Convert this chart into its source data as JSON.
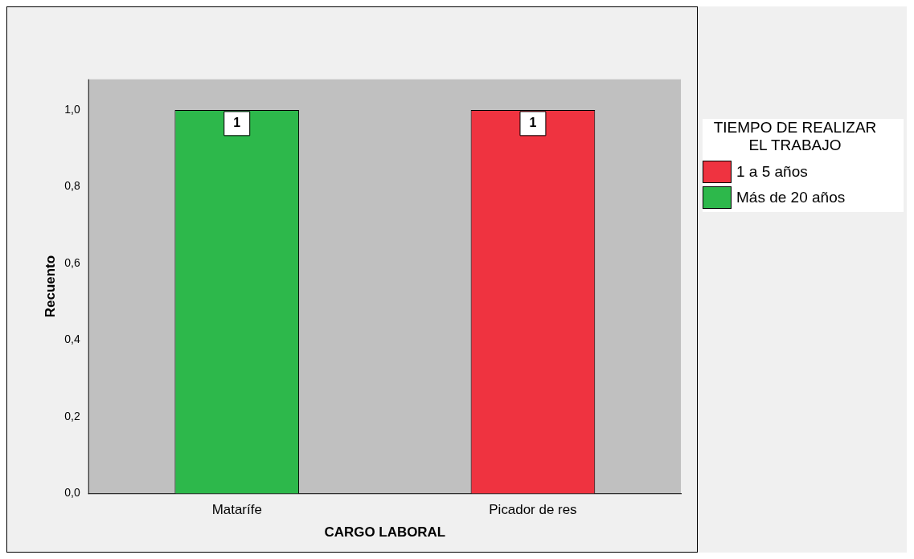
{
  "chart_data": {
    "type": "bar",
    "xlabel": "CARGO LABORAL",
    "ylabel": "Recuento",
    "legend_title": "TIEMPO DE REALIZAR EL TRABAJO",
    "categories": [
      "Matarífe",
      "Picador de res"
    ],
    "series": [
      {
        "name": "1 a 5 años",
        "color": "#ef3340",
        "values": [
          null,
          1
        ]
      },
      {
        "name": "Más de 20 años",
        "color": "#2db84b",
        "values": [
          1,
          null
        ]
      }
    ],
    "stacked": true,
    "ylim": [
      0,
      1.08
    ],
    "yticks": [
      {
        "value": 0,
        "label": "0,0"
      },
      {
        "value": 0.2,
        "label": "0,2"
      },
      {
        "value": 0.4,
        "label": "0,4"
      },
      {
        "value": 0.6,
        "label": "0,6"
      },
      {
        "value": 0.8,
        "label": "0,8"
      },
      {
        "value": 1,
        "label": "1,0"
      }
    ],
    "grid": false,
    "legend": "right",
    "data_labels": true
  }
}
